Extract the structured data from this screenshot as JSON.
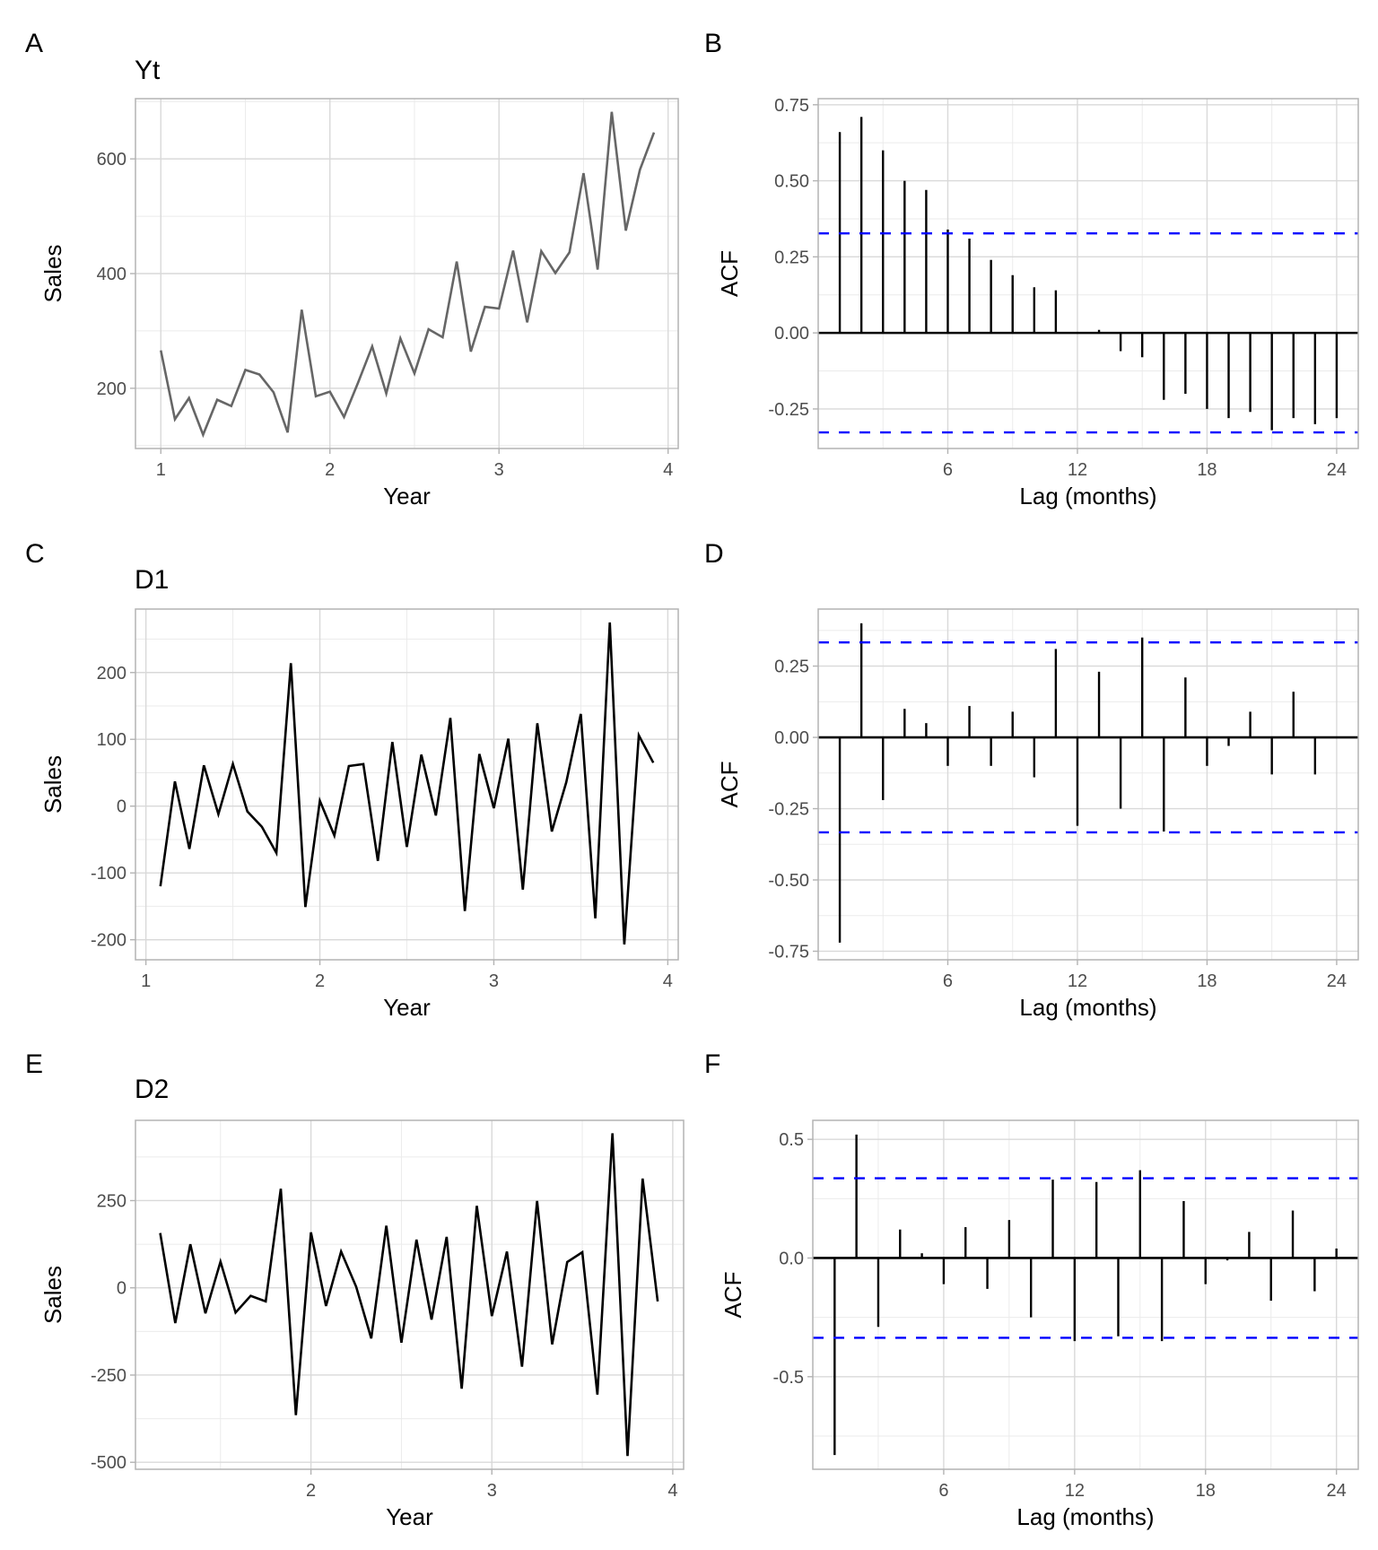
{
  "chart_data": [
    {
      "id": "A",
      "panel_label": "A",
      "type": "line",
      "title": "Yt",
      "xlabel": "Year",
      "ylabel": "Sales",
      "line_color": "#666666",
      "xlim": [
        0.85,
        4.06
      ],
      "ylim": [
        95,
        705
      ],
      "xticks": [
        1,
        2,
        3,
        4
      ],
      "xtick_labels": [
        "1",
        "2",
        "3",
        "4"
      ],
      "yticks": [
        200,
        400,
        600
      ],
      "ytick_labels": [
        "200",
        "400",
        "600"
      ],
      "yminor": [
        100,
        300,
        500,
        700
      ],
      "x_start": 1,
      "x_step": 0.0833333,
      "values": [
        266,
        146,
        183,
        119,
        180,
        169,
        232,
        224,
        193,
        123,
        337,
        186,
        194,
        150,
        210,
        273,
        191,
        287,
        226,
        303,
        289,
        421,
        264,
        342,
        339,
        440,
        315,
        439,
        401,
        437,
        575,
        407,
        682,
        475,
        581,
        646
      ],
      "grid": true
    },
    {
      "id": "B",
      "panel_label": "B",
      "type": "bar",
      "subtype": "acf",
      "title": "",
      "xlabel": "Lag (months)",
      "ylabel": "ACF",
      "xlim": [
        0,
        25
      ],
      "ylim": [
        -0.38,
        0.77
      ],
      "xticks": [
        6,
        12,
        18,
        24
      ],
      "xtick_labels": [
        "6",
        "12",
        "18",
        "24"
      ],
      "yticks": [
        -0.25,
        0,
        0.25,
        0.5,
        0.75
      ],
      "ytick_labels": [
        "-0.25",
        "0.00",
        "0.25",
        "0.50",
        "0.75"
      ],
      "yminor": [
        -0.125,
        0.125,
        0.375,
        0.625
      ],
      "lags": [
        1,
        2,
        3,
        4,
        5,
        6,
        7,
        8,
        9,
        10,
        11,
        12,
        13,
        14,
        15,
        16,
        17,
        18,
        19,
        20,
        21,
        22,
        23,
        24
      ],
      "values": [
        0.66,
        0.71,
        0.6,
        0.5,
        0.47,
        0.34,
        0.31,
        0.24,
        0.19,
        0.15,
        0.14,
        0.0,
        0.01,
        -0.06,
        -0.08,
        -0.22,
        -0.2,
        -0.25,
        -0.28,
        -0.26,
        -0.32,
        -0.28,
        -0.3,
        -0.28
      ],
      "ci": 0.327,
      "ci_color": "#0000ff",
      "grid": true
    },
    {
      "id": "C",
      "panel_label": "C",
      "type": "line",
      "title": "D1",
      "xlabel": "Year",
      "ylabel": "Sales",
      "line_color": "#000000",
      "xlim": [
        0.94,
        4.06
      ],
      "ylim": [
        -230,
        295
      ],
      "xticks": [
        1,
        2,
        3,
        4
      ],
      "xtick_labels": [
        "1",
        "2",
        "3",
        "4"
      ],
      "yticks": [
        -200,
        -100,
        0,
        100,
        200
      ],
      "ytick_labels": [
        "-200",
        "-100",
        "0",
        "100",
        "200"
      ],
      "yminor": [
        -150,
        -50,
        50,
        150,
        250
      ],
      "x_start": 1.0833333,
      "x_step": 0.0833333,
      "values": [
        -120,
        37,
        -64,
        61,
        -12,
        63,
        -8,
        -31,
        -70,
        214,
        -151,
        8,
        -44,
        60,
        63,
        -82,
        96,
        -61,
        77,
        -14,
        132,
        -157,
        78,
        -3,
        101,
        -125,
        124,
        -38,
        36,
        138,
        -168,
        275,
        -207,
        106,
        65
      ],
      "grid": true
    },
    {
      "id": "D",
      "panel_label": "D",
      "type": "bar",
      "subtype": "acf",
      "title": "",
      "xlabel": "Lag (months)",
      "ylabel": "ACF",
      "xlim": [
        0,
        25
      ],
      "ylim": [
        -0.78,
        0.45
      ],
      "xticks": [
        6,
        12,
        18,
        24
      ],
      "xtick_labels": [
        "6",
        "12",
        "18",
        "24"
      ],
      "yticks": [
        -0.75,
        -0.5,
        -0.25,
        0,
        0.25
      ],
      "ytick_labels": [
        "-0.75",
        "-0.50",
        "-0.25",
        "0.00",
        "0.25"
      ],
      "yminor": [
        -0.625,
        -0.375,
        -0.125,
        0.125,
        0.375
      ],
      "lags": [
        1,
        2,
        3,
        4,
        5,
        6,
        7,
        8,
        9,
        10,
        11,
        12,
        13,
        14,
        15,
        16,
        17,
        18,
        19,
        20,
        21,
        22,
        23
      ],
      "values": [
        -0.72,
        0.4,
        -0.22,
        0.1,
        0.05,
        -0.1,
        0.11,
        -0.1,
        0.09,
        -0.14,
        0.31,
        -0.31,
        0.23,
        -0.25,
        0.35,
        -0.33,
        0.21,
        -0.1,
        -0.03,
        0.09,
        -0.13,
        0.16,
        -0.13
      ],
      "ci": 0.333,
      "ci_color": "#0000ff",
      "grid": true
    },
    {
      "id": "E",
      "panel_label": "E",
      "type": "line",
      "title": "D2",
      "xlabel": "Year",
      "ylabel": "Sales",
      "line_color": "#000000",
      "xlim": [
        1.03,
        4.06
      ],
      "ylim": [
        -520,
        480
      ],
      "xticks": [
        2,
        3,
        4
      ],
      "xtick_labels": [
        "2",
        "3",
        "4"
      ],
      "yticks": [
        -500,
        -250,
        0,
        250
      ],
      "ytick_labels": [
        "-500",
        "-250",
        "0",
        "250"
      ],
      "yminor": [
        -375,
        -125,
        125,
        375
      ],
      "xminor": [
        1.5,
        2.5,
        3.5
      ],
      "x_start": 1.1666667,
      "x_step": 0.0833333,
      "values": [
        157,
        -101,
        125,
        -73,
        75,
        -71,
        -23,
        -39,
        284,
        -365,
        159,
        -52,
        104,
        3,
        -145,
        178,
        -157,
        138,
        -91,
        146,
        -289,
        235,
        -81,
        104,
        -226,
        249,
        -162,
        74,
        102,
        -306,
        443,
        -482,
        313,
        -39
      ],
      "grid": true
    },
    {
      "id": "F",
      "panel_label": "F",
      "type": "bar",
      "subtype": "acf",
      "title": "",
      "xlabel": "Lag (months)",
      "ylabel": "ACF",
      "xlim": [
        0,
        25
      ],
      "ylim": [
        -0.89,
        0.58
      ],
      "xticks": [
        6,
        12,
        18,
        24
      ],
      "xtick_labels": [
        "6",
        "12",
        "18",
        "24"
      ],
      "yticks": [
        -0.5,
        0,
        0.5
      ],
      "ytick_labels": [
        "-0.5",
        "0.0",
        "0.5"
      ],
      "yminor": [
        -0.75,
        -0.25,
        0.25
      ],
      "lags": [
        1,
        2,
        3,
        4,
        5,
        6,
        7,
        8,
        9,
        10,
        11,
        12,
        13,
        14,
        15,
        16,
        17,
        18,
        19,
        20,
        21,
        22,
        23,
        24
      ],
      "values": [
        -0.83,
        0.52,
        -0.29,
        0.12,
        0.02,
        -0.11,
        0.13,
        -0.13,
        0.16,
        -0.25,
        0.33,
        -0.35,
        0.32,
        -0.33,
        0.37,
        -0.35,
        0.24,
        -0.11,
        -0.01,
        0.11,
        -0.18,
        0.2,
        -0.14,
        0.04
      ],
      "ci": 0.336,
      "ci_color": "#0000ff",
      "grid": true
    }
  ]
}
